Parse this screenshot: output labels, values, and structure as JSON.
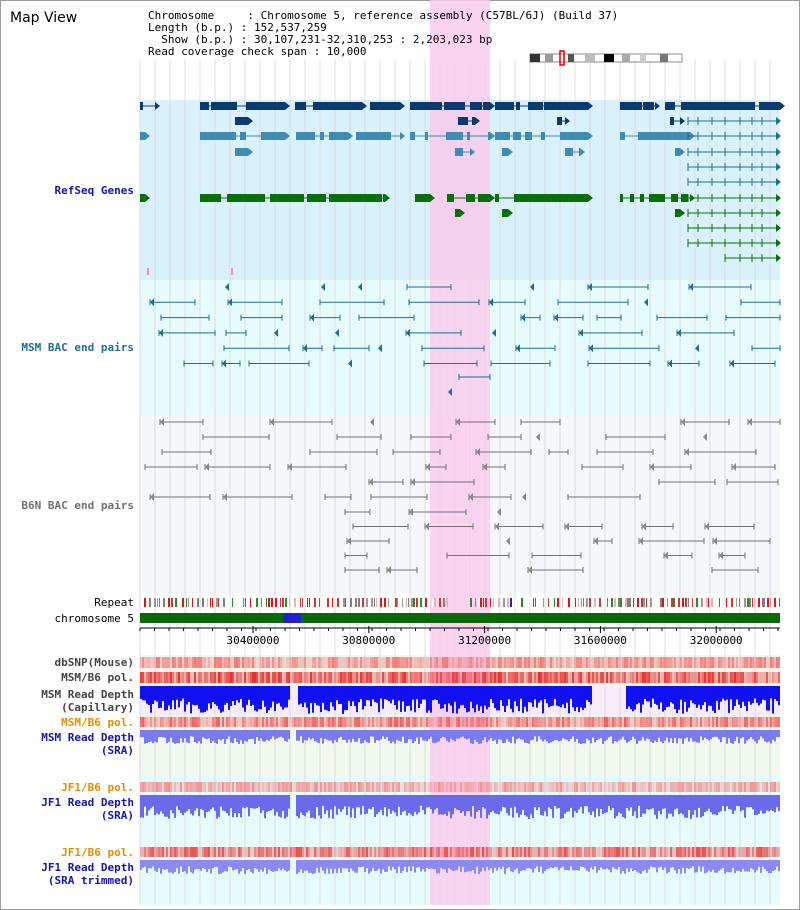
{
  "title": "Map View",
  "header": {
    "line1": "Chromosome     : Chromosome 5, reference assembly (C57BL/6J) (Build 37)",
    "line2": "Length (b.p.) : 152,537,259",
    "line3": "  Show (b.p.) : 30,107,231-32,310,253 : 2,203,023 bp",
    "line4": "Read coverage check span : 10,000"
  },
  "tracks": {
    "refseq": "RefSeq Genes",
    "msm_bac": "MSM BAC end pairs",
    "b6n_bac": "B6N BAC end pairs",
    "repeat": "Repeat",
    "chromosome": "chromosome 5",
    "dbsnp": "dbSNP(Mouse)",
    "msm_b6_pol": "MSM/B6 pol.",
    "msm_read_depth_cap_1": "MSM Read Depth",
    "msm_read_depth_cap_2": "(Capillary)",
    "msm_b6_pol_sra": "MSM/B6 pol.",
    "msm_read_depth_sra_1": "MSM Read Depth",
    "msm_read_depth_sra_2": "(SRA)",
    "jf1_b6_pol": "JF1/B6 pol.",
    "jf1_read_depth_1": "JF1 Read Depth",
    "jf1_read_depth_2": "(SRA)",
    "jf1_b6_pol_t": "JF1/B6 pol.",
    "jf1_read_depth_t_1": "JF1 Read Depth",
    "jf1_read_depth_t_2": "(SRA trimmed)"
  },
  "axis": {
    "ticks": [
      "30400000",
      "30800000",
      "31200000",
      "31600000",
      "32000000"
    ]
  },
  "colors": {
    "refseq_bg": "#d8f1fa",
    "bac_bg": "#e6fbfb",
    "b6n_bg": "#f5f7fb",
    "highlight": "#f9ccec",
    "navy": "#0d3a6e",
    "steel": "#3f8bb2",
    "green": "#0a6e0a",
    "teal": "#1f6f8f",
    "gray": "#707070",
    "label_blue": "#1515b4",
    "label_orange": "#e09000",
    "label_teal": "#1f6f8f"
  }
}
